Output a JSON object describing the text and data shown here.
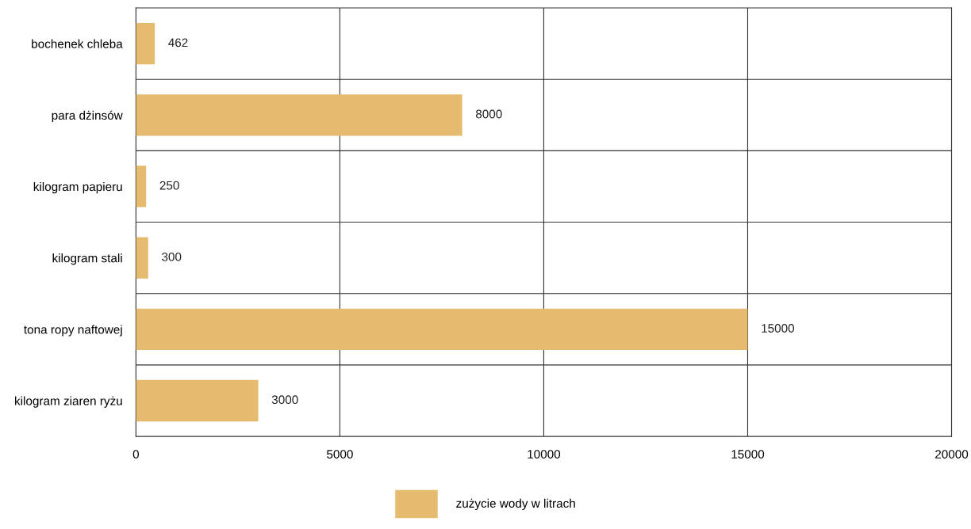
{
  "chart_data": {
    "type": "bar",
    "orientation": "horizontal",
    "categories": [
      "bochenek chleba",
      "para dżinsów",
      "kilogram papieru",
      "kilogram stali",
      "tona ropy naftowej",
      "kilogram ziaren ryżu"
    ],
    "series": [
      {
        "name": "zużycie wody w litrach",
        "color": "#e5bb6f",
        "values": [
          462,
          8000,
          250,
          300,
          15000,
          3000
        ]
      }
    ],
    "xlim": [
      0,
      20000
    ],
    "xticks": [
      0,
      5000,
      10000,
      15000,
      20000
    ],
    "grid": true,
    "data_labels": true,
    "legend": "bottom"
  }
}
